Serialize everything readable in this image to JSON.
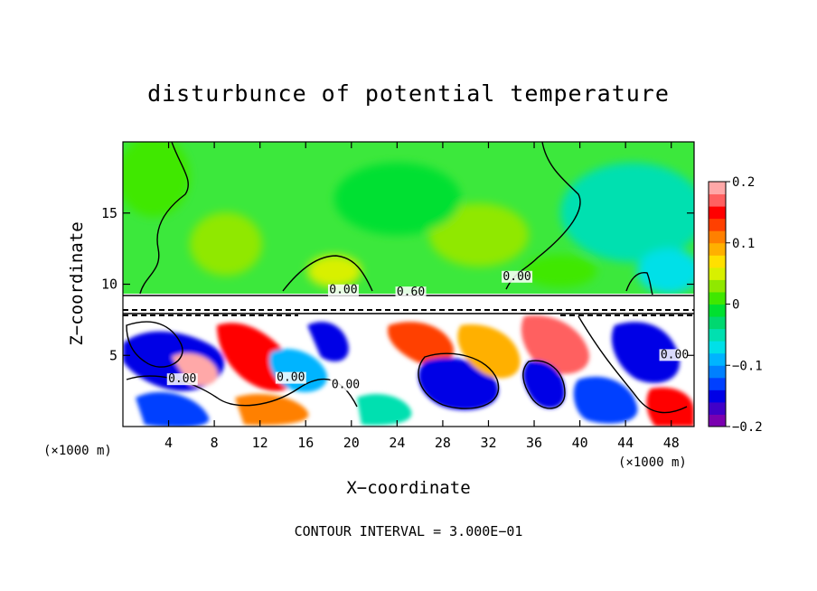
{
  "chart_data": {
    "type": "heatmap",
    "title": "disturbunce of potential temperature",
    "xlabel": "X−coordinate",
    "ylabel": "Z−coordinate",
    "x_unit_left": "(×1000 m)",
    "x_unit_right": "(×1000 m)",
    "xlim": [
      0,
      50
    ],
    "ylim": [
      0,
      20
    ],
    "xticks": [
      4,
      8,
      12,
      16,
      20,
      24,
      28,
      32,
      36,
      40,
      44,
      48
    ],
    "yticks": [
      5,
      10,
      15
    ],
    "contour_labels": [
      {
        "text": "0.00",
        "x": 19.3,
        "z": 9.35
      },
      {
        "text": "0.60",
        "x": 25.2,
        "z": 9.2
      },
      {
        "text": "0.00",
        "x": 34.5,
        "z": 10.3
      },
      {
        "text": "0.00",
        "x": 5.2,
        "z": 3.1
      },
      {
        "text": "0.00",
        "x": 14.7,
        "z": 3.2
      },
      {
        "text": "0.00",
        "x": 19.5,
        "z": 2.7
      },
      {
        "text": "0.00",
        "x": 48.3,
        "z": 4.8
      }
    ],
    "colorbar": {
      "min": -0.2,
      "max": 0.2,
      "ticks": [
        -0.2,
        -0.1,
        0,
        0.1,
        0.2
      ],
      "tick_labels": [
        "−0.2",
        "−0.1",
        "0",
        "0.1",
        "0.2"
      ],
      "colors": [
        "#7a00b0",
        "#4000c8",
        "#0000e6",
        "#0040ff",
        "#0080ff",
        "#00b4ff",
        "#00e0e8",
        "#00e0b0",
        "#00d870",
        "#00e030",
        "#40e800",
        "#90e800",
        "#d8f000",
        "#ffe000",
        "#ffb000",
        "#ff8000",
        "#ff4000",
        "#ff0000",
        "#ff6060",
        "#ffa8a8"
      ]
    },
    "contour_interval": "CONTOUR INTERVAL = 3.000E−01"
  }
}
